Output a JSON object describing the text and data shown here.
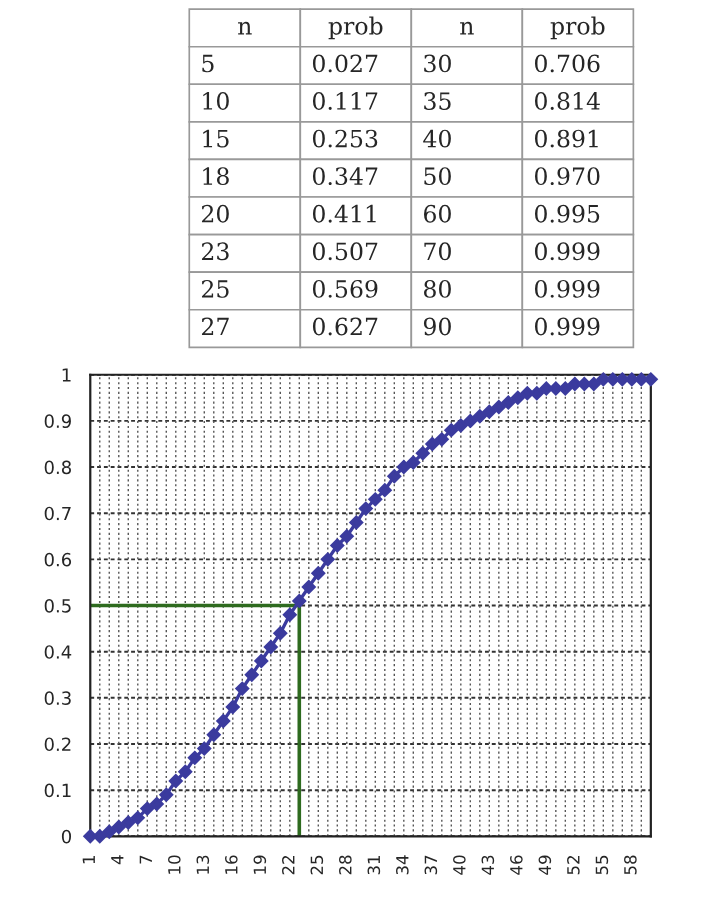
{
  "chart_data": [
    {
      "type": "other",
      "categories": [
        "n",
        "prob",
        "n",
        "prob"
      ],
      "annotations": [
        "5",
        "0.027",
        "30",
        "0.706",
        "10",
        "0.117",
        "35",
        "0.814",
        "15",
        "0.253",
        "40",
        "0.891",
        "18",
        "0.347",
        "50",
        "0.970",
        "20",
        "0.411",
        "60",
        "0.995",
        "23",
        "0.507",
        "70",
        "0.999",
        "25",
        "0.569",
        "80",
        "0.999",
        "27",
        "0.627",
        "90",
        "0.999"
      ]
    },
    {
      "type": "line",
      "x": [
        1,
        2,
        3,
        4,
        5,
        6,
        7,
        8,
        9,
        10,
        11,
        12,
        13,
        14,
        15,
        16,
        17,
        18,
        19,
        20,
        21,
        22,
        23,
        24,
        25,
        26,
        27,
        28,
        29,
        30,
        31,
        32,
        33,
        34,
        35,
        36,
        37,
        38,
        39,
        40,
        41,
        42,
        43,
        44,
        45,
        46,
        47,
        48,
        49,
        50,
        51,
        52,
        53,
        54,
        55,
        56,
        57,
        58,
        59,
        60
      ],
      "series": [
        {
          "color": "#3b3b9e",
          "values": [
            0,
            0.0,
            0.01,
            0.02,
            0.03,
            0.04,
            0.06,
            0.07,
            0.09,
            0.12,
            0.14,
            0.17,
            0.19,
            0.22,
            0.25,
            0.28,
            0.32,
            0.35,
            0.38,
            0.41,
            0.44,
            0.48,
            0.51,
            0.54,
            0.57,
            0.6,
            0.63,
            0.65,
            0.68,
            0.71,
            0.73,
            0.75,
            0.78,
            0.8,
            0.81,
            0.83,
            0.85,
            0.86,
            0.88,
            0.89,
            0.9,
            0.91,
            0.92,
            0.93,
            0.94,
            0.95,
            0.96,
            0.96,
            0.97,
            0.97,
            0.97,
            0.98,
            0.98,
            0.98,
            0.99,
            0.99,
            0.99,
            0.99,
            0.99,
            0.99
          ]
        }
      ],
      "xlim": [
        1,
        60
      ],
      "xticks": [
        1,
        {
          "value": 2,
          "label": null
        },
        {
          "value": 3,
          "label": null
        },
        4,
        {
          "value": 5,
          "label": null
        },
        {
          "value": 6,
          "label": null
        },
        7,
        {
          "value": 8,
          "label": null
        },
        {
          "value": 9,
          "label": null
        },
        10,
        {
          "value": 11,
          "label": null
        },
        {
          "value": 12,
          "label": null
        },
        13,
        {
          "value": 14,
          "label": null
        },
        {
          "value": 15,
          "label": null
        },
        16,
        {
          "value": 17,
          "label": null
        },
        {
          "value": 18,
          "label": null
        },
        19,
        {
          "value": 20,
          "label": null
        },
        {
          "value": 21,
          "label": null
        },
        22,
        {
          "value": 23,
          "label": null
        },
        {
          "value": 24,
          "label": null
        },
        25,
        {
          "value": 26,
          "label": null
        },
        {
          "value": 27,
          "label": null
        },
        28,
        {
          "value": 29,
          "label": null
        },
        {
          "value": 30,
          "label": null
        },
        31,
        {
          "value": 32,
          "label": null
        },
        {
          "value": 33,
          "label": null
        },
        34,
        {
          "value": 35,
          "label": null
        },
        {
          "value": 36,
          "label": null
        },
        37,
        {
          "value": 38,
          "label": null
        },
        {
          "value": 39,
          "label": null
        },
        40,
        {
          "value": 41,
          "label": null
        },
        {
          "value": 42,
          "label": null
        },
        43,
        {
          "value": 44,
          "label": null
        },
        {
          "value": 45,
          "label": null
        },
        46,
        {
          "value": 47,
          "label": null
        },
        {
          "value": 48,
          "label": null
        },
        49,
        {
          "value": 50,
          "label": null
        },
        {
          "value": 51,
          "label": null
        },
        52,
        {
          "value": 53,
          "label": null
        },
        {
          "value": 54,
          "label": null
        },
        55,
        {
          "value": 56,
          "label": null
        },
        {
          "value": 57,
          "label": null
        },
        58,
        {
          "value": 59,
          "label": null
        },
        {
          "value": 60,
          "label": null
        }
      ],
      "ylim": [
        0,
        1
      ],
      "yticks": [
        0,
        0.1,
        0.2,
        0.3,
        0.4,
        0.5,
        0.6,
        0.7,
        0.8,
        0.9,
        1
      ],
      "grid": true,
      "marker": "diamond",
      "line_style": "solid",
      "ref_lines": [
        {
          "axis": "y",
          "value": 0.5,
          "color": "#2e6b1f"
        },
        {
          "axis": "x",
          "value": 23,
          "color": "#2e6b1f"
        }
      ]
    }
  ]
}
